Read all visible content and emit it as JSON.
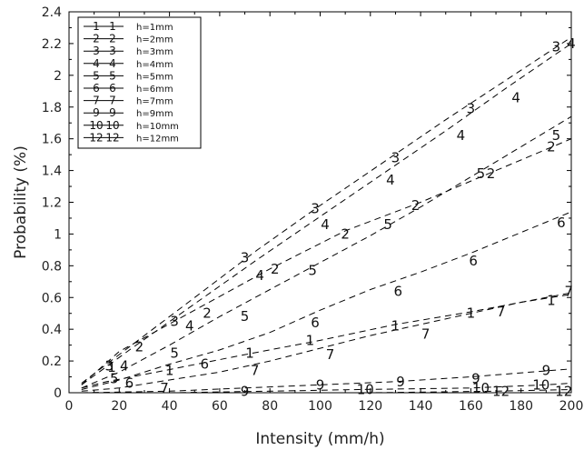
{
  "chart_data": {
    "type": "line",
    "title": "",
    "xlabel": "Intensity (mm/h)",
    "ylabel": "Probability (%)",
    "xlim": [
      0,
      200
    ],
    "ylim": [
      0,
      2.4
    ],
    "xticks": [
      "0",
      "20",
      "40",
      "60",
      "80",
      "100",
      "120",
      "140",
      "160",
      "180",
      "200"
    ],
    "yticks": [
      "0",
      "0.2",
      "0.4",
      "0.6",
      "0.8",
      "1",
      "1.2",
      "1.4",
      "1.6",
      "1.8",
      "2",
      "2.2",
      "2.4"
    ],
    "grid": false,
    "legend_position": "top-left",
    "series": [
      {
        "name": "h=1mm",
        "marker": "1",
        "x": [
          5,
          15,
          38,
          70,
          100,
          130,
          160,
          200
        ],
        "y": [
          0.03,
          0.07,
          0.14,
          0.24,
          0.33,
          0.43,
          0.51,
          0.63
        ]
      },
      {
        "name": "h=2mm",
        "marker": "2",
        "x": [
          5,
          20,
          50,
          80,
          110,
          140,
          170,
          200
        ],
        "y": [
          0.05,
          0.26,
          0.52,
          0.78,
          1.02,
          1.2,
          1.4,
          1.6
        ]
      },
      {
        "name": "h=3mm",
        "marker": "3",
        "x": [
          5,
          25,
          50,
          75,
          100,
          125,
          150,
          175,
          200
        ],
        "y": [
          0.06,
          0.3,
          0.6,
          0.9,
          1.18,
          1.45,
          1.72,
          1.98,
          2.24
        ]
      },
      {
        "name": "h=4mm",
        "marker": "4",
        "x": [
          5,
          25,
          50,
          75,
          100,
          125,
          150,
          175,
          200
        ],
        "y": [
          0.05,
          0.28,
          0.56,
          0.84,
          1.11,
          1.38,
          1.65,
          1.93,
          2.2
        ]
      },
      {
        "name": "h=5mm",
        "marker": "5",
        "x": [
          5,
          20,
          40,
          60,
          80,
          100,
          120,
          140,
          160,
          180,
          200
        ],
        "y": [
          0.03,
          0.13,
          0.3,
          0.48,
          0.65,
          0.82,
          0.99,
          1.17,
          1.36,
          1.55,
          1.74
        ]
      },
      {
        "name": "h=6mm",
        "marker": "6",
        "x": [
          5,
          20,
          40,
          60,
          80,
          100,
          120,
          140,
          160,
          180,
          200
        ],
        "y": [
          0.02,
          0.08,
          0.18,
          0.27,
          0.38,
          0.52,
          0.65,
          0.76,
          0.88,
          1.01,
          1.14
        ]
      },
      {
        "name": "h=7mm",
        "marker": "7",
        "x": [
          5,
          20,
          40,
          60,
          80,
          100,
          120,
          140,
          160,
          180,
          200
        ],
        "y": [
          0.01,
          0.03,
          0.08,
          0.13,
          0.2,
          0.28,
          0.36,
          0.43,
          0.5,
          0.57,
          0.62
        ]
      },
      {
        "name": "h=9mm",
        "marker": "9",
        "x": [
          5,
          40,
          70,
          100,
          130,
          160,
          200
        ],
        "y": [
          0.0,
          0.01,
          0.03,
          0.05,
          0.07,
          0.1,
          0.15
        ]
      },
      {
        "name": "h=10mm",
        "marker": "10",
        "x": [
          5,
          40,
          80,
          115,
          160,
          190,
          200
        ],
        "y": [
          0.0,
          0.0,
          0.01,
          0.02,
          0.03,
          0.05,
          0.06
        ]
      },
      {
        "name": "h=12mm",
        "marker": "12",
        "x": [
          5,
          40,
          80,
          120,
          170,
          200
        ],
        "y": [
          0.0,
          0.0,
          0.0,
          0.0,
          0.01,
          0.02
        ]
      }
    ],
    "markers": [
      {
        "label": "1",
        "x": 17,
        "y": 0.16
      },
      {
        "label": "1",
        "x": 40,
        "y": 0.14
      },
      {
        "label": "1",
        "x": 72,
        "y": 0.25
      },
      {
        "label": "1",
        "x": 96,
        "y": 0.33
      },
      {
        "label": "1",
        "x": 130,
        "y": 0.42
      },
      {
        "label": "1",
        "x": 160,
        "y": 0.5
      },
      {
        "label": "1",
        "x": 192,
        "y": 0.58
      },
      {
        "label": "2",
        "x": 28,
        "y": 0.29
      },
      {
        "label": "2",
        "x": 55,
        "y": 0.5
      },
      {
        "label": "2",
        "x": 82,
        "y": 0.78
      },
      {
        "label": "2",
        "x": 110,
        "y": 1.0
      },
      {
        "label": "2",
        "x": 138,
        "y": 1.18
      },
      {
        "label": "2",
        "x": 168,
        "y": 1.38
      },
      {
        "label": "2",
        "x": 192,
        "y": 1.55
      },
      {
        "label": "3",
        "x": 16,
        "y": 0.17
      },
      {
        "label": "3",
        "x": 42,
        "y": 0.45
      },
      {
        "label": "3",
        "x": 70,
        "y": 0.85
      },
      {
        "label": "3",
        "x": 98,
        "y": 1.16
      },
      {
        "label": "3",
        "x": 130,
        "y": 1.48
      },
      {
        "label": "3",
        "x": 160,
        "y": 1.79
      },
      {
        "label": "3",
        "x": 194,
        "y": 2.18
      },
      {
        "label": "4",
        "x": 22,
        "y": 0.17
      },
      {
        "label": "4",
        "x": 48,
        "y": 0.42
      },
      {
        "label": "4",
        "x": 76,
        "y": 0.74
      },
      {
        "label": "4",
        "x": 102,
        "y": 1.06
      },
      {
        "label": "4",
        "x": 128,
        "y": 1.34
      },
      {
        "label": "4",
        "x": 156,
        "y": 1.62
      },
      {
        "label": "4",
        "x": 178,
        "y": 1.86
      },
      {
        "label": "4",
        "x": 200,
        "y": 2.2
      },
      {
        "label": "5",
        "x": 18,
        "y": 0.09
      },
      {
        "label": "5",
        "x": 42,
        "y": 0.25
      },
      {
        "label": "5",
        "x": 70,
        "y": 0.48
      },
      {
        "label": "5",
        "x": 97,
        "y": 0.77
      },
      {
        "label": "5",
        "x": 127,
        "y": 1.06
      },
      {
        "label": "5",
        "x": 164,
        "y": 1.38
      },
      {
        "label": "5",
        "x": 194,
        "y": 1.62
      },
      {
        "label": "6",
        "x": 24,
        "y": 0.06
      },
      {
        "label": "6",
        "x": 54,
        "y": 0.18
      },
      {
        "label": "6",
        "x": 98,
        "y": 0.44
      },
      {
        "label": "6",
        "x": 131,
        "y": 0.64
      },
      {
        "label": "6",
        "x": 161,
        "y": 0.83
      },
      {
        "label": "6",
        "x": 196,
        "y": 1.07
      },
      {
        "label": "7",
        "x": 38,
        "y": 0.03
      },
      {
        "label": "7",
        "x": 74,
        "y": 0.14
      },
      {
        "label": "7",
        "x": 104,
        "y": 0.24
      },
      {
        "label": "7",
        "x": 142,
        "y": 0.37
      },
      {
        "label": "7",
        "x": 172,
        "y": 0.51
      },
      {
        "label": "7",
        "x": 199,
        "y": 0.64
      },
      {
        "label": "9",
        "x": 70,
        "y": 0.01
      },
      {
        "label": "9",
        "x": 100,
        "y": 0.05
      },
      {
        "label": "9",
        "x": 132,
        "y": 0.07
      },
      {
        "label": "9",
        "x": 162,
        "y": 0.09
      },
      {
        "label": "9",
        "x": 190,
        "y": 0.14
      },
      {
        "label": "10",
        "x": 118,
        "y": 0.02
      },
      {
        "label": "10",
        "x": 164,
        "y": 0.03
      },
      {
        "label": "10",
        "x": 188,
        "y": 0.05
      },
      {
        "label": "12",
        "x": 172,
        "y": 0.01
      },
      {
        "label": "12",
        "x": 197,
        "y": 0.01
      }
    ]
  }
}
